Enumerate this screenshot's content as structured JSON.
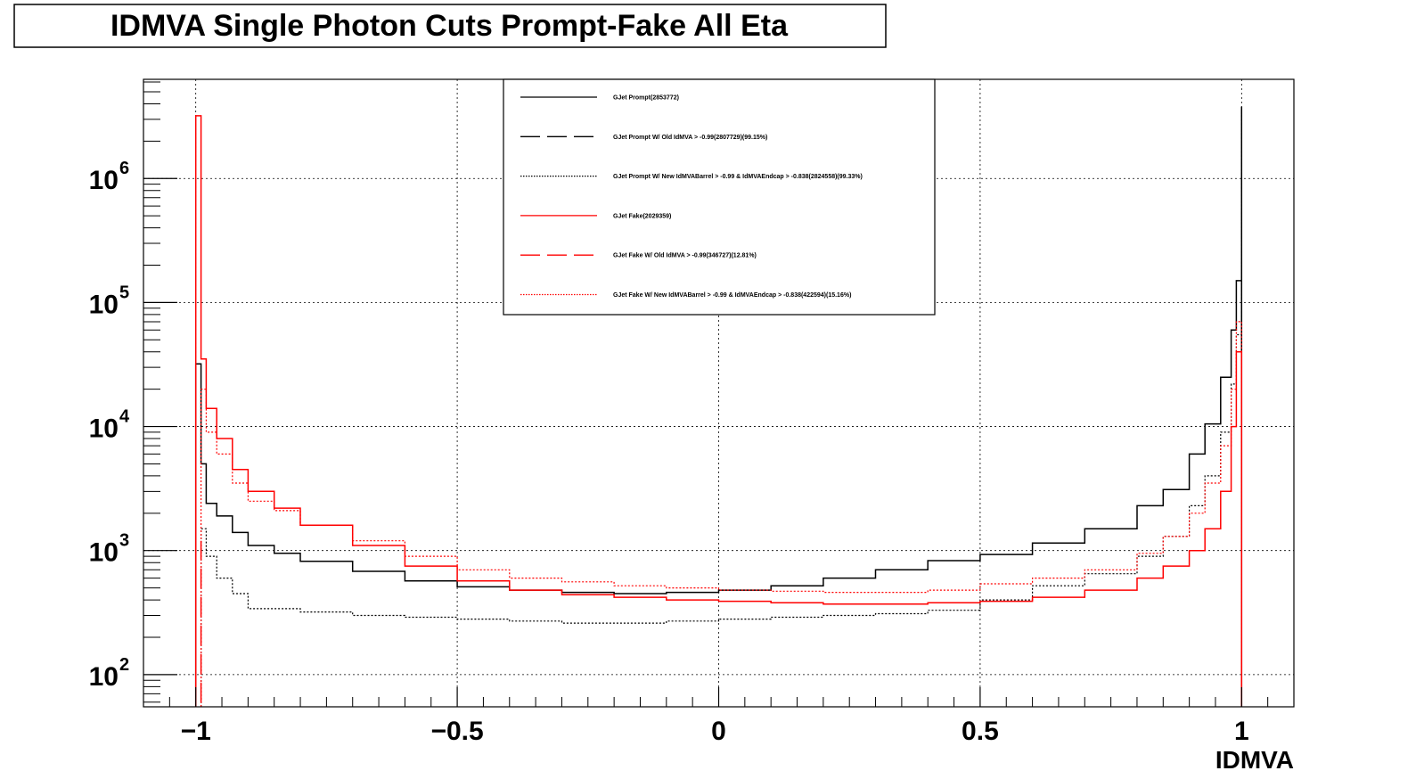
{
  "chart_data": {
    "type": "line",
    "title": "IDMVA Single Photon Cuts Prompt-Fake All Eta",
    "xlabel": "IDMVA",
    "ylabel": "",
    "xlim": [
      -1.1,
      1.1
    ],
    "ylim": [
      55,
      6300000
    ],
    "yscale": "log",
    "grid": true,
    "legend_position": "top-center",
    "x_ticks": [
      -1,
      -0.5,
      0,
      0.5,
      1
    ],
    "x_tick_labels": [
      "−1",
      "−0.5",
      "0",
      "0.5",
      "1"
    ],
    "y_ticks": [
      100,
      1000,
      10000,
      100000,
      1000000
    ],
    "y_tick_bases": [
      "10",
      "10",
      "10",
      "10",
      "10"
    ],
    "y_tick_exponents": [
      "2",
      "3",
      "4",
      "5",
      "6"
    ],
    "series": [
      {
        "name": "GJet Prompt(2853772)",
        "color": "#000000",
        "style": "solid",
        "x": [
          -1.0,
          -0.99,
          -0.98,
          -0.96,
          -0.93,
          -0.9,
          -0.85,
          -0.8,
          -0.7,
          -0.6,
          -0.5,
          -0.4,
          -0.3,
          -0.2,
          -0.1,
          0.0,
          0.1,
          0.2,
          0.3,
          0.4,
          0.5,
          0.6,
          0.7,
          0.8,
          0.85,
          0.9,
          0.93,
          0.96,
          0.98,
          0.99,
          1.0
        ],
        "y": [
          32000,
          5000,
          2400,
          1900,
          1400,
          1100,
          950,
          820,
          680,
          570,
          510,
          480,
          460,
          450,
          460,
          480,
          520,
          600,
          700,
          830,
          930,
          1150,
          1500,
          2300,
          3100,
          6000,
          10500,
          25000,
          60000,
          150000,
          3800000
        ]
      },
      {
        "name": "GJet Prompt W/ Old IdMVA > -0.99(2807729)(99.15%)",
        "color": "#000000",
        "style": "dashed",
        "x": [],
        "y": []
      },
      {
        "name": "GJet Prompt W/ New IdMVABarrel > -0.99 & IdMVAEndcap > -0.838(2824558)(99.33%)",
        "color": "#000000",
        "style": "dotted",
        "x": [
          -0.99,
          -0.98,
          -0.96,
          -0.93,
          -0.9,
          -0.85,
          -0.8,
          -0.7,
          -0.6,
          -0.5,
          -0.4,
          -0.3,
          -0.2,
          -0.1,
          0.0,
          0.1,
          0.2,
          0.3,
          0.4,
          0.5,
          0.6,
          0.7,
          0.8,
          0.85,
          0.9,
          0.93,
          0.96,
          0.98,
          0.99,
          1.0
        ],
        "y": [
          1500,
          900,
          600,
          450,
          340,
          340,
          320,
          300,
          290,
          280,
          270,
          260,
          260,
          270,
          280,
          290,
          300,
          310,
          330,
          400,
          520,
          650,
          900,
          1300,
          2300,
          4000,
          9000,
          22000,
          55000,
          3600000
        ]
      },
      {
        "name": "GJet Fake(2029359)",
        "color": "#ff0000",
        "style": "solid",
        "x": [
          -1.0,
          -0.99,
          -0.98,
          -0.96,
          -0.93,
          -0.9,
          -0.85,
          -0.8,
          -0.7,
          -0.6,
          -0.5,
          -0.4,
          -0.3,
          -0.2,
          -0.1,
          0.0,
          0.1,
          0.2,
          0.3,
          0.4,
          0.5,
          0.6,
          0.7,
          0.8,
          0.85,
          0.9,
          0.93,
          0.96,
          0.98,
          0.99,
          1.0
        ],
        "y": [
          3200000,
          35000,
          14000,
          8000,
          4500,
          3000,
          2200,
          1600,
          1100,
          750,
          570,
          480,
          440,
          420,
          400,
          390,
          380,
          370,
          370,
          380,
          390,
          420,
          480,
          600,
          750,
          1000,
          1500,
          3000,
          10000,
          40000,
          80
        ]
      },
      {
        "name": "GJet Fake W/ Old IdMVA > -0.99(346727)(12.81%)",
        "color": "#ff0000",
        "style": "dashed",
        "x": [
          -0.99,
          -0.99
        ],
        "y": [
          60,
          1200
        ]
      },
      {
        "name": "GJet Fake W/ New IdMVABarrel > -0.99 & IdMVAEndcap > -0.838(422594)(15.16%)",
        "color": "#ff0000",
        "style": "dotted",
        "x": [
          -0.99,
          -0.98,
          -0.96,
          -0.93,
          -0.9,
          -0.85,
          -0.8,
          -0.7,
          -0.6,
          -0.5,
          -0.4,
          -0.3,
          -0.2,
          -0.1,
          0.0,
          0.1,
          0.2,
          0.3,
          0.4,
          0.5,
          0.6,
          0.7,
          0.8,
          0.85,
          0.9,
          0.93,
          0.96,
          0.98,
          0.99,
          1.0
        ],
        "y": [
          20000,
          9000,
          6000,
          3500,
          2500,
          2100,
          1600,
          1200,
          900,
          700,
          600,
          560,
          520,
          500,
          480,
          470,
          460,
          460,
          480,
          540,
          600,
          700,
          950,
          1300,
          2000,
          3500,
          7000,
          20000,
          70000,
          80
        ]
      }
    ]
  }
}
